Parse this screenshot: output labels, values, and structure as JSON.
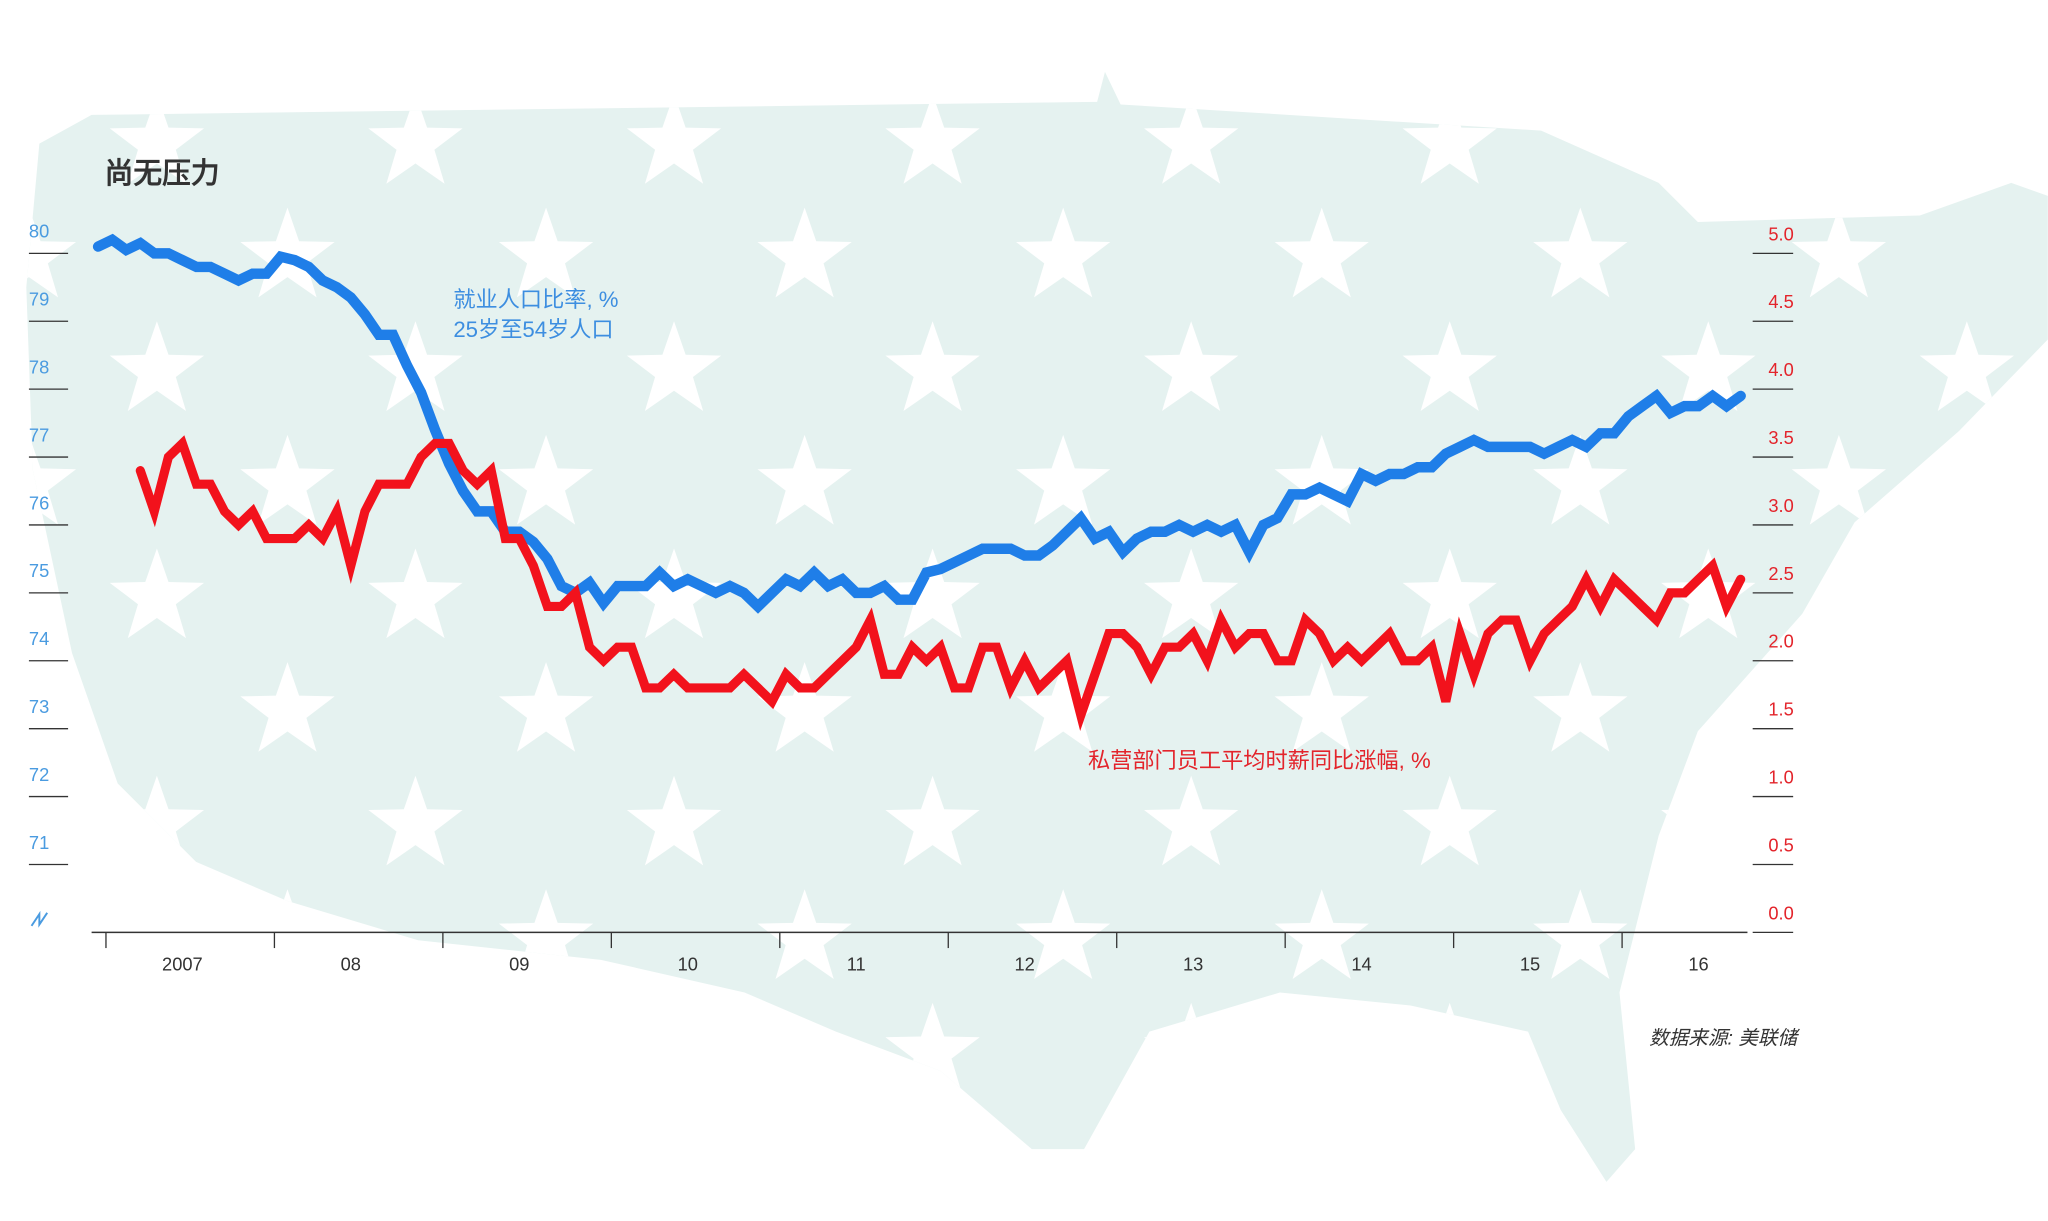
{
  "chart_data": {
    "type": "line",
    "title": "尚无压力",
    "annotations": [
      "25岁至54岁人口"
    ],
    "source": "数据来源: 美联储",
    "categories": [
      null,
      null,
      null,
      null,
      null,
      null,
      "2007",
      null,
      null,
      null,
      null,
      null,
      null,
      null,
      null,
      null,
      null,
      null,
      "08",
      null,
      null,
      null,
      null,
      null,
      null,
      null,
      null,
      null,
      null,
      null,
      "09",
      null,
      null,
      null,
      null,
      null,
      null,
      null,
      null,
      null,
      null,
      null,
      "10",
      null,
      null,
      null,
      null,
      null,
      null,
      null,
      null,
      null,
      null,
      null,
      "11",
      null,
      null,
      null,
      null,
      null,
      null,
      null,
      null,
      null,
      null,
      null,
      "12",
      null,
      null,
      null,
      null,
      null,
      null,
      null,
      null,
      null,
      null,
      null,
      "13",
      null,
      null,
      null,
      null,
      null,
      null,
      null,
      null,
      null,
      null,
      null,
      "14",
      null,
      null,
      null,
      null,
      null,
      null,
      null,
      null,
      null,
      null,
      null,
      "15",
      null,
      null,
      null,
      null,
      null,
      null,
      null,
      null,
      null,
      null,
      null,
      "16",
      null,
      null,
      null
    ],
    "ylim": [
      70,
      80
    ],
    "yticks": [
      71,
      72,
      73,
      74,
      75,
      76,
      77,
      78,
      79,
      80
    ],
    "y2lim": [
      0,
      5
    ],
    "y2ticks": [
      {
        "value": 0,
        "label": "0.0"
      },
      0.5,
      {
        "value": 1,
        "label": "1.0"
      },
      1.5,
      {
        "value": 2,
        "label": "2.0"
      },
      2.5,
      {
        "value": 3,
        "label": "3.0"
      },
      3.5,
      {
        "value": 4,
        "label": "4.0"
      },
      4.5,
      {
        "value": 5,
        "label": "5.0"
      }
    ],
    "series": [
      {
        "name": "就业人口比率, %",
        "color": "#1f7ee8",
        "axis": "y",
        "values": [
          80.1,
          80.2,
          80.05,
          80.15,
          80.0,
          80.0,
          79.9,
          79.8,
          79.8,
          79.7,
          79.6,
          79.7,
          79.7,
          79.95,
          79.9,
          79.8,
          79.6,
          79.5,
          79.35,
          79.1,
          78.8,
          78.8,
          78.35,
          77.95,
          77.4,
          76.9,
          76.5,
          76.2,
          76.2,
          75.9,
          75.9,
          75.75,
          75.5,
          75.1,
          75.0,
          75.15,
          74.85,
          75.1,
          75.1,
          75.1,
          75.3,
          75.1,
          75.2,
          75.1,
          75.0,
          75.1,
          75.0,
          74.8,
          75.0,
          75.2,
          75.1,
          75.3,
          75.1,
          75.2,
          75.0,
          75.0,
          75.1,
          74.9,
          74.9,
          75.3,
          75.35,
          75.45,
          75.55,
          75.65,
          75.65,
          75.65,
          75.55,
          75.55,
          75.7,
          75.9,
          76.1,
          75.8,
          75.9,
          75.6,
          75.8,
          75.9,
          75.9,
          76.0,
          75.9,
          76.0,
          75.9,
          76.0,
          75.6,
          76.0,
          76.1,
          76.45,
          76.45,
          76.55,
          76.45,
          76.35,
          76.75,
          76.65,
          76.75,
          76.75,
          76.85,
          76.85,
          77.05,
          77.15,
          77.25,
          77.15,
          77.15,
          77.15,
          77.15,
          77.05,
          77.15,
          77.25,
          77.15,
          77.35,
          77.35,
          77.6,
          77.75,
          77.9,
          77.65,
          77.75,
          77.75,
          77.9,
          77.75,
          77.9
        ]
      },
      {
        "name": "私营部门员工平均时薪同比涨幅, %",
        "color": "#f2121c",
        "axis": "y2",
        "values": [
          null,
          null,
          null,
          3.4,
          3.1,
          3.5,
          3.6,
          3.3,
          3.3,
          3.1,
          3.0,
          3.1,
          2.9,
          2.9,
          2.9,
          3.0,
          2.9,
          3.1,
          2.7,
          3.1,
          3.3,
          3.3,
          3.3,
          3.5,
          3.6,
          3.6,
          3.4,
          3.3,
          3.4,
          2.9,
          2.9,
          2.7,
          2.4,
          2.4,
          2.5,
          2.1,
          2.0,
          2.1,
          2.1,
          1.8,
          1.8,
          1.9,
          1.8,
          1.8,
          1.8,
          1.8,
          1.9,
          1.8,
          1.7,
          1.9,
          1.8,
          1.8,
          1.9,
          2.0,
          2.1,
          2.3,
          1.9,
          1.9,
          2.1,
          2.0,
          2.1,
          1.8,
          1.8,
          2.1,
          2.1,
          1.8,
          2.0,
          1.8,
          1.9,
          2.0,
          1.6,
          1.9,
          2.2,
          2.2,
          2.1,
          1.9,
          2.1,
          2.1,
          2.2,
          2.0,
          2.3,
          2.1,
          2.2,
          2.2,
          2.0,
          2.0,
          2.3,
          2.2,
          2.0,
          2.1,
          2.0,
          2.1,
          2.2,
          2.0,
          2.0,
          2.1,
          1.7,
          2.2,
          1.9,
          2.2,
          2.3,
          2.3,
          2.0,
          2.2,
          2.3,
          2.4,
          2.6,
          2.4,
          2.6,
          2.5,
          2.4,
          2.3,
          2.5,
          2.5,
          2.6,
          2.7,
          2.4,
          2.6
        ]
      }
    ]
  }
}
